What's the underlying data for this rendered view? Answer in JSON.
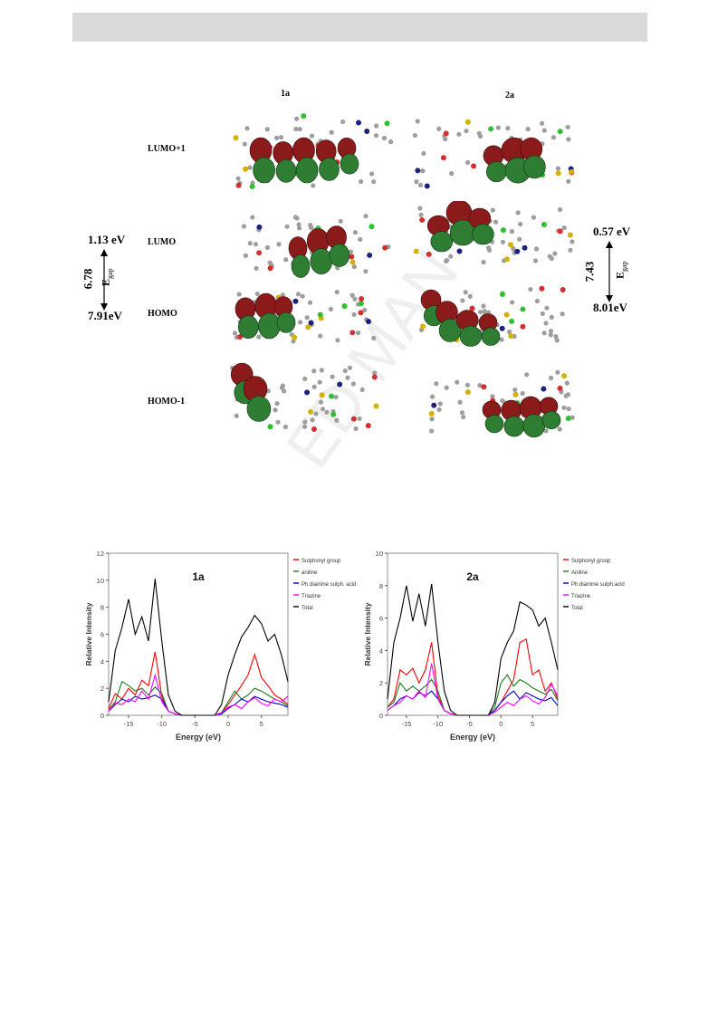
{
  "figure": {
    "columns": [
      "1a",
      "2a"
    ],
    "orbitals": [
      "LUMO+1",
      "LUMO",
      "HOMO",
      "HOMO-1"
    ],
    "left_energies": {
      "lumo": "1.13 eV",
      "homo": "7.91eV",
      "gap": "6.78"
    },
    "right_energies": {
      "lumo": "0.57 eV",
      "homo": "8.01eV",
      "gap": "7.43"
    },
    "gap_symbol": "E",
    "gap_subscript": "gap",
    "colors": {
      "lobe_red": "#8b1a1a",
      "lobe_green": "#2e7d32",
      "atom_gray": "#9e9e9e",
      "atom_yellow": "#d4b000",
      "atom_red": "#d32f2f",
      "atom_blue": "#1a237e",
      "atom_green": "#2ec02e"
    }
  },
  "watermark": "ED MAN",
  "legend_labels_1a": [
    "Sulphonyl group",
    "aniline",
    "Ph.diamine sulph. acid",
    "Triazine",
    "Total"
  ],
  "legend_labels_2a": [
    "Sulphonyl group",
    "Aniline",
    "Ph.diamine sulph.acid",
    "Triazine",
    "Total"
  ],
  "chart_data": [
    {
      "type": "line",
      "title": "1a",
      "xlabel": "Energy (eV)",
      "ylabel": "Relative Intensity",
      "xlim": [
        -18,
        9
      ],
      "ylim": [
        0,
        12
      ],
      "xticks": [
        -15,
        -10,
        -5,
        0,
        5
      ],
      "yticks": [
        0,
        2,
        4,
        6,
        8,
        10,
        12
      ],
      "legend_position": "right",
      "x": [
        -18,
        -17,
        -16,
        -15,
        -14,
        -13,
        -12,
        -11,
        -10,
        -9,
        -8,
        -7,
        -6,
        -5,
        -4,
        -3,
        -2,
        -1,
        0,
        1,
        2,
        3,
        4,
        5,
        6,
        7,
        8,
        9
      ],
      "series": [
        {
          "name": "Sulphonyl group",
          "color": "#ff0000",
          "values": [
            0.5,
            1.6,
            1.2,
            2.0,
            1.5,
            2.6,
            2.2,
            4.7,
            1.4,
            0.3,
            0.1,
            0,
            0,
            0,
            0,
            0,
            0,
            0.2,
            0.8,
            1.5,
            2.2,
            3.0,
            4.5,
            2.8,
            2.2,
            1.5,
            1.2,
            0.8
          ]
        },
        {
          "name": "aniline",
          "color": "#1b7a1b",
          "values": [
            0.4,
            1.0,
            2.5,
            2.2,
            1.8,
            2.0,
            1.5,
            2.1,
            1.6,
            0.3,
            0.1,
            0,
            0,
            0,
            0,
            0,
            0,
            0.2,
            1.0,
            1.8,
            1.2,
            1.5,
            2.0,
            1.8,
            1.5,
            1.2,
            1.0,
            0.7
          ]
        },
        {
          "name": "Ph.diamine sulph. acid",
          "color": "#0000cc",
          "values": [
            0.3,
            0.8,
            1.2,
            1.0,
            1.4,
            1.2,
            1.3,
            1.5,
            1.2,
            0.3,
            0.1,
            0,
            0,
            0,
            0,
            0,
            0,
            0.1,
            0.5,
            0.8,
            1.2,
            1.0,
            1.4,
            1.2,
            1.0,
            0.9,
            0.8,
            0.6
          ]
        },
        {
          "name": "Triazine",
          "color": "#ff00ff",
          "values": [
            0.3,
            0.9,
            0.8,
            1.2,
            1.0,
            1.8,
            1.2,
            3.0,
            1.0,
            0.3,
            0.1,
            0,
            0,
            0,
            0,
            0,
            0,
            0.2,
            0.6,
            0.8,
            0.5,
            1.0,
            1.3,
            0.9,
            0.7,
            1.2,
            1.0,
            1.4
          ]
        },
        {
          "name": "Total",
          "color": "#000000",
          "values": [
            1.0,
            4.8,
            6.5,
            8.6,
            6.0,
            7.3,
            5.5,
            10.1,
            5.5,
            1.5,
            0.3,
            0,
            0,
            0,
            0,
            0,
            0,
            0.8,
            3.0,
            4.5,
            5.8,
            6.5,
            7.4,
            6.8,
            5.5,
            6.0,
            4.5,
            2.5
          ]
        }
      ]
    },
    {
      "type": "line",
      "title": "2a",
      "xlabel": "Energy (eV)",
      "ylabel": "Relative Intensity",
      "xlim": [
        -18,
        9
      ],
      "ylim": [
        0,
        10
      ],
      "xticks": [
        -15,
        -10,
        -5,
        0,
        5
      ],
      "yticks": [
        0,
        2,
        4,
        6,
        8,
        10
      ],
      "legend_position": "right",
      "x": [
        -18,
        -17,
        -16,
        -15,
        -14,
        -13,
        -12,
        -11,
        -10,
        -9,
        -8,
        -7,
        -6,
        -5,
        -4,
        -3,
        -2,
        -1,
        0,
        1,
        2,
        3,
        4,
        5,
        6,
        7,
        8,
        9
      ],
      "series": [
        {
          "name": "Sulphonyl group",
          "color": "#ff0000",
          "values": [
            0.5,
            1.0,
            2.8,
            2.5,
            2.9,
            2.0,
            2.8,
            4.5,
            1.2,
            0.3,
            0.1,
            0,
            0,
            0,
            0,
            0,
            0,
            0.3,
            0.8,
            1.5,
            2.2,
            4.5,
            4.7,
            2.5,
            2.8,
            1.5,
            2.0,
            1.0
          ]
        },
        {
          "name": "Aniline",
          "color": "#1b7a1b",
          "values": [
            0.5,
            0.8,
            2.0,
            1.5,
            1.8,
            1.5,
            1.8,
            2.2,
            1.5,
            0.3,
            0.1,
            0,
            0,
            0,
            0,
            0,
            0,
            0.5,
            2.0,
            2.5,
            1.8,
            2.2,
            2.0,
            1.7,
            1.5,
            1.3,
            1.6,
            0.9
          ]
        },
        {
          "name": "Ph.diamine sulph.acid",
          "color": "#0000cc",
          "values": [
            0.3,
            0.6,
            1.0,
            1.2,
            1.0,
            1.4,
            1.2,
            1.5,
            1.0,
            0.3,
            0.1,
            0,
            0,
            0,
            0,
            0,
            0,
            0.3,
            0.8,
            1.2,
            1.5,
            1.0,
            1.4,
            1.2,
            1.0,
            0.9,
            1.1,
            0.6
          ]
        },
        {
          "name": "Triazine",
          "color": "#ff00ff",
          "values": [
            0.3,
            0.6,
            0.8,
            1.2,
            1.0,
            1.5,
            1.1,
            3.2,
            1.0,
            0.3,
            0.1,
            0,
            0,
            0,
            0,
            0,
            0,
            0.2,
            0.5,
            0.8,
            0.6,
            1.0,
            1.2,
            0.9,
            0.7,
            1.1,
            1.9,
            1.2
          ]
        },
        {
          "name": "Total",
          "color": "#000000",
          "values": [
            1.0,
            4.5,
            6.0,
            8.0,
            5.8,
            7.5,
            5.5,
            8.1,
            4.5,
            1.5,
            0.3,
            0,
            0,
            0,
            0,
            0,
            0,
            0.8,
            3.5,
            4.5,
            5.2,
            7.0,
            6.8,
            6.5,
            5.5,
            6.0,
            4.5,
            2.8
          ]
        }
      ]
    }
  ]
}
